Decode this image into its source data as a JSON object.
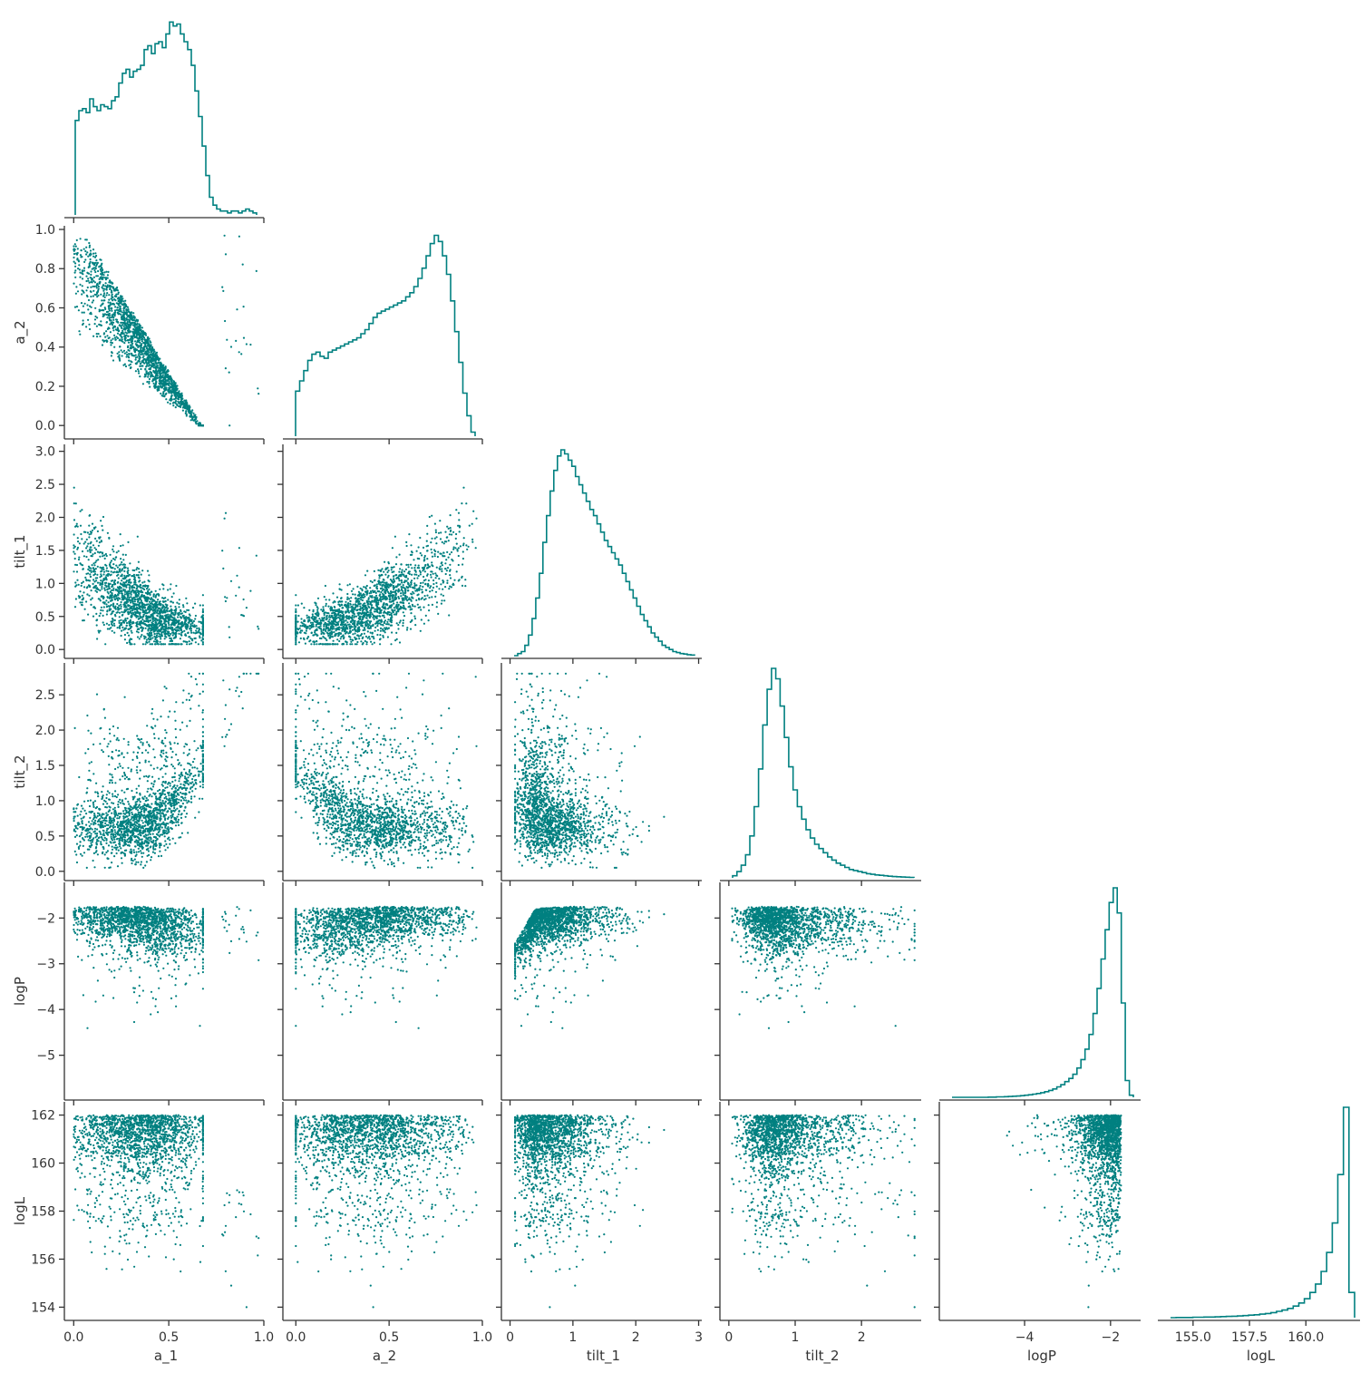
{
  "chart_data": {
    "type": "corner",
    "color": "#008080",
    "axis_color": "#333333",
    "variables": [
      {
        "name": "a_1",
        "label": "a_1",
        "range": [
          -0.03,
          1.0
        ],
        "ticks": [
          0.0,
          0.5,
          1.0
        ],
        "tick_labels": [
          "0.0",
          "0.5",
          "1.0"
        ]
      },
      {
        "name": "a_2",
        "label": "a_2",
        "range": [
          -0.05,
          1.0
        ],
        "ticks": [
          0.0,
          0.2,
          0.4,
          0.6,
          0.8,
          1.0
        ],
        "tick_labels": [
          "0.0",
          "0.2",
          "0.4",
          "0.6",
          "0.8",
          "1.0"
        ],
        "x_tick_labels": [
          "0.0",
          "0.5",
          "1.0"
        ],
        "x_ticks": [
          0.0,
          0.5,
          1.0
        ]
      },
      {
        "name": "tilt_1",
        "label": "tilt_1",
        "range": [
          -0.08,
          3.05
        ],
        "ticks": [
          0.0,
          0.5,
          1.0,
          1.5,
          2.0,
          2.5,
          3.0
        ],
        "tick_labels": [
          "0.0",
          "0.5",
          "1.0",
          "1.5",
          "2.0",
          "2.5",
          "3.0"
        ],
        "x_tick_labels": [
          "0",
          "1",
          "2",
          "3"
        ],
        "x_ticks": [
          0,
          1,
          2,
          3
        ]
      },
      {
        "name": "tilt_2",
        "label": "tilt_2",
        "range": [
          -0.08,
          2.9
        ],
        "ticks": [
          0.0,
          0.5,
          1.0,
          1.5,
          2.0,
          2.5
        ],
        "tick_labels": [
          "0.0",
          "0.5",
          "1.0",
          "1.5",
          "2.0",
          "2.5"
        ],
        "x_tick_labels": [
          "0",
          "1",
          "2"
        ],
        "x_ticks": [
          0,
          1,
          2
        ]
      },
      {
        "name": "logP",
        "label": "logP",
        "range": [
          -5.9,
          -1.3
        ],
        "ticks": [
          -5,
          -4,
          -3,
          -2
        ],
        "tick_labels": [
          "−5",
          "−4",
          "−3",
          "−2"
        ],
        "x_tick_labels": [
          "−4",
          "−2"
        ],
        "x_ticks": [
          -4,
          -2
        ]
      },
      {
        "name": "logL",
        "label": "logL",
        "range": [
          153.6,
          162.4
        ],
        "ticks": [
          154,
          156,
          158,
          160,
          162
        ],
        "tick_labels": [
          "154",
          "156",
          "158",
          "160",
          "162"
        ],
        "x_tick_labels": [
          "155.0",
          "157.5",
          "160.0"
        ],
        "x_ticks": [
          155.0,
          157.5,
          160.0
        ]
      }
    ],
    "x_ticks_a1": [
      0.0,
      0.5,
      1.0
    ],
    "x_tick_labels_a1": [
      "0.0",
      "0.5",
      "1.0"
    ],
    "histograms": [
      {
        "variable": "a_1",
        "values": [
          0.48,
          0.53,
          0.54,
          0.52,
          0.59,
          0.55,
          0.53,
          0.56,
          0.55,
          0.54,
          0.58,
          0.6,
          0.67,
          0.72,
          0.74,
          0.7,
          0.73,
          0.74,
          0.76,
          0.84,
          0.86,
          0.82,
          0.87,
          0.88,
          0.85,
          0.92,
          0.98,
          0.96,
          0.97,
          0.92,
          0.88,
          0.84,
          0.76,
          0.63,
          0.5,
          0.35,
          0.2,
          0.09,
          0.05,
          0.03,
          0.02,
          0.02,
          0.01,
          0.02,
          0.02,
          0.01,
          0.02,
          0.03,
          0.02,
          0.01
        ]
      },
      {
        "variable": "a_2",
        "values": [
          0.22,
          0.27,
          0.32,
          0.37,
          0.4,
          0.41,
          0.39,
          0.38,
          0.41,
          0.42,
          0.43,
          0.44,
          0.45,
          0.46,
          0.47,
          0.48,
          0.5,
          0.52,
          0.55,
          0.58,
          0.6,
          0.61,
          0.62,
          0.63,
          0.64,
          0.65,
          0.66,
          0.68,
          0.7,
          0.73,
          0.77,
          0.82,
          0.88,
          0.94,
          0.98,
          0.95,
          0.88,
          0.79,
          0.66,
          0.51,
          0.36,
          0.21,
          0.1,
          0.02
        ]
      },
      {
        "variable": "tilt_1",
        "values": [
          0.0,
          0.01,
          0.02,
          0.05,
          0.1,
          0.18,
          0.28,
          0.4,
          0.55,
          0.68,
          0.8,
          0.9,
          0.97,
          1.0,
          0.98,
          0.95,
          0.92,
          0.87,
          0.83,
          0.79,
          0.75,
          0.71,
          0.68,
          0.64,
          0.6,
          0.56,
          0.53,
          0.5,
          0.47,
          0.44,
          0.4,
          0.36,
          0.32,
          0.28,
          0.24,
          0.2,
          0.17,
          0.14,
          0.11,
          0.09,
          0.07,
          0.05,
          0.04,
          0.03,
          0.02,
          0.015,
          0.01,
          0.008,
          0.005,
          0.003
        ]
      },
      {
        "variable": "tilt_2",
        "values": [
          0.01,
          0.03,
          0.06,
          0.11,
          0.2,
          0.34,
          0.52,
          0.73,
          0.9,
          1.0,
          0.95,
          0.82,
          0.67,
          0.53,
          0.42,
          0.34,
          0.28,
          0.23,
          0.19,
          0.16,
          0.14,
          0.12,
          0.1,
          0.085,
          0.07,
          0.06,
          0.05,
          0.04,
          0.035,
          0.03,
          0.025,
          0.02,
          0.017,
          0.014,
          0.012,
          0.01,
          0.008,
          0.006,
          0.005,
          0.004,
          0.003,
          0.002
        ]
      },
      {
        "variable": "logP",
        "values": [
          0.0,
          0.0,
          0.0,
          0.0,
          0.0,
          0.0,
          0.0,
          0.0,
          0.0,
          0.001,
          0.001,
          0.002,
          0.002,
          0.003,
          0.004,
          0.005,
          0.006,
          0.008,
          0.01,
          0.012,
          0.015,
          0.018,
          0.022,
          0.027,
          0.033,
          0.04,
          0.05,
          0.06,
          0.075,
          0.09,
          0.11,
          0.14,
          0.18,
          0.23,
          0.3,
          0.4,
          0.52,
          0.66,
          0.8,
          0.93,
          1.0,
          0.88,
          0.45,
          0.08,
          0.01
        ]
      },
      {
        "variable": "logL",
        "values": [
          0.0,
          0.001,
          0.001,
          0.001,
          0.002,
          0.002,
          0.003,
          0.003,
          0.004,
          0.005,
          0.006,
          0.007,
          0.008,
          0.01,
          0.012,
          0.014,
          0.017,
          0.02,
          0.024,
          0.03,
          0.036,
          0.044,
          0.055,
          0.07,
          0.09,
          0.12,
          0.16,
          0.22,
          0.31,
          0.45,
          0.68,
          1.0,
          0.12
        ]
      }
    ],
    "scatter": [
      {
        "x": "a_1",
        "y": "a_2",
        "n": 1800
      },
      {
        "x": "a_1",
        "y": "tilt_1",
        "n": 1700
      },
      {
        "x": "a_2",
        "y": "tilt_1",
        "n": 1700
      },
      {
        "x": "a_1",
        "y": "tilt_2",
        "n": 1700
      },
      {
        "x": "a_2",
        "y": "tilt_2",
        "n": 1700
      },
      {
        "x": "tilt_1",
        "y": "tilt_2",
        "n": 1700
      },
      {
        "x": "a_1",
        "y": "logP",
        "n": 1700
      },
      {
        "x": "a_2",
        "y": "logP",
        "n": 1700
      },
      {
        "x": "tilt_1",
        "y": "logP",
        "n": 1700
      },
      {
        "x": "tilt_2",
        "y": "logP",
        "n": 1700
      },
      {
        "x": "a_1",
        "y": "logL",
        "n": 1700
      },
      {
        "x": "a_2",
        "y": "logL",
        "n": 1700
      },
      {
        "x": "tilt_1",
        "y": "logL",
        "n": 1700
      },
      {
        "x": "tilt_2",
        "y": "logL",
        "n": 1700
      },
      {
        "x": "logP",
        "y": "logL",
        "n": 1700
      }
    ]
  }
}
